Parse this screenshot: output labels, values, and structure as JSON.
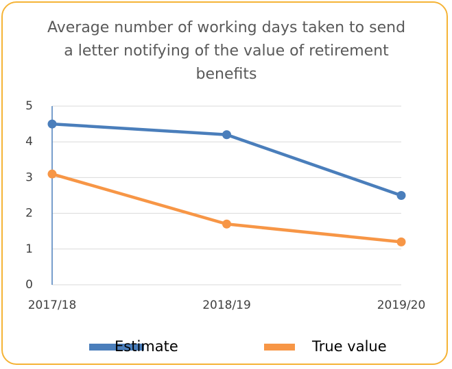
{
  "chart_data": {
    "type": "line",
    "title": "Average number of working days taken to send a letter notifying of the value of retirement benefits",
    "categories": [
      "2017/18",
      "2018/19",
      "2019/20"
    ],
    "series": [
      {
        "name": "Estimate",
        "color": "#4a7ebb",
        "values": [
          4.5,
          4.2,
          2.5
        ]
      },
      {
        "name": "True value",
        "color": "#f79646",
        "values": [
          3.1,
          1.7,
          1.2
        ]
      }
    ],
    "ylim": [
      0,
      5
    ],
    "yticks": [
      0,
      1,
      2,
      3,
      4,
      5
    ],
    "grid": true,
    "legend": "bottom"
  }
}
